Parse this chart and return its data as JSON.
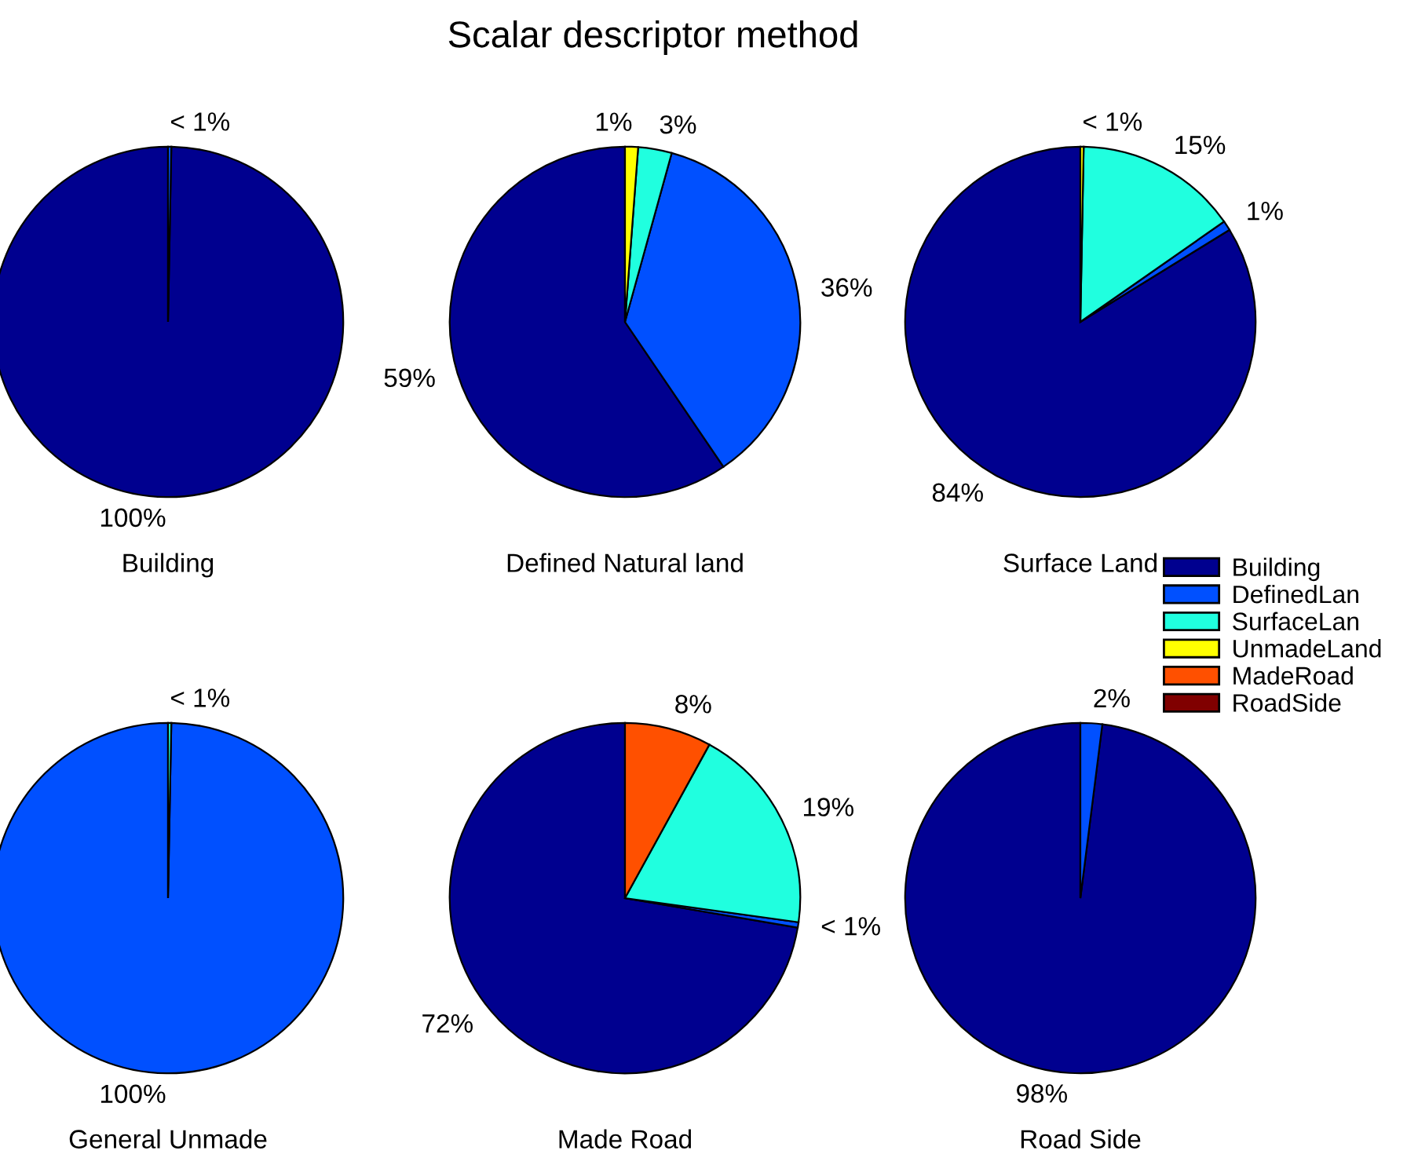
{
  "chart_data": [
    {
      "type": "pie",
      "xlabel": "Building",
      "categories": [
        null,
        null,
        null,
        null,
        null,
        null
      ],
      "colors": [
        "#00008f",
        "#0050ff",
        "#20ffdf",
        "#ffff00",
        "#ff5000",
        "#800000"
      ],
      "values": [
        99.7,
        0.3,
        null,
        null,
        null,
        null
      ],
      "value_labels": [
        "100%",
        "< 1%",
        null,
        null,
        null,
        null
      ]
    },
    {
      "type": "pie",
      "title": "Scalar descriptor method",
      "xlabel": "Defined Natural land",
      "categories": [
        null,
        null,
        null,
        null,
        null,
        null
      ],
      "colors": [
        "#00008f",
        "#0050ff",
        "#20ffdf",
        "#ffff00",
        "#ff5000",
        "#800000"
      ],
      "values": [
        59.5,
        36.2,
        3.1,
        1.2,
        null,
        null
      ],
      "value_labels": [
        "59%",
        "36%",
        "3%",
        "1%",
        null,
        null
      ]
    },
    {
      "type": "pie",
      "xlabel": "Surface Land",
      "legend": "right",
      "categories": [
        "Building",
        "DefinedLan",
        "SurfaceLan",
        "UnmadeLand",
        "MadeRoad",
        "RoadSide"
      ],
      "colors": [
        "#00008f",
        "#0050ff",
        "#20ffdf",
        "#ffff00",
        "#ff5000",
        "#800000"
      ],
      "values": [
        83.8,
        0.9,
        15.0,
        0.3,
        null,
        null
      ],
      "value_labels": [
        "84%",
        "1%",
        "15%",
        "< 1%",
        null,
        null
      ]
    },
    {
      "type": "pie",
      "xlabel": "General Unmade",
      "categories": [
        null,
        null,
        null,
        null,
        null,
        null
      ],
      "colors": [
        "#00008f",
        "#0050ff",
        "#20ffdf",
        "#ffff00",
        "#ff5000",
        "#800000"
      ],
      "values": [
        null,
        99.7,
        0.3,
        null,
        null,
        null
      ],
      "value_labels": [
        null,
        "100%",
        "< 1%",
        null,
        null,
        null
      ]
    },
    {
      "type": "pie",
      "xlabel": "Made Road",
      "categories": [
        null,
        null,
        null,
        null,
        null,
        null
      ],
      "colors": [
        "#00008f",
        "#0050ff",
        "#20ffdf",
        "#ffff00",
        "#ff5000",
        "#800000"
      ],
      "values": [
        72.3,
        0.5,
        19.2,
        null,
        8.0,
        null
      ],
      "value_labels": [
        "72%",
        "< 1%",
        "19%",
        null,
        "8%",
        null
      ]
    },
    {
      "type": "pie",
      "xlabel": "Road Side",
      "categories": [
        null,
        null,
        null,
        null,
        null,
        null
      ],
      "colors": [
        "#00008f",
        "#0050ff",
        "#20ffdf",
        "#ffff00",
        "#ff5000",
        "#800000"
      ],
      "values": [
        98,
        2,
        null,
        null,
        null,
        null
      ],
      "value_labels": [
        "98%",
        "2%",
        null,
        null,
        null,
        null
      ]
    }
  ]
}
